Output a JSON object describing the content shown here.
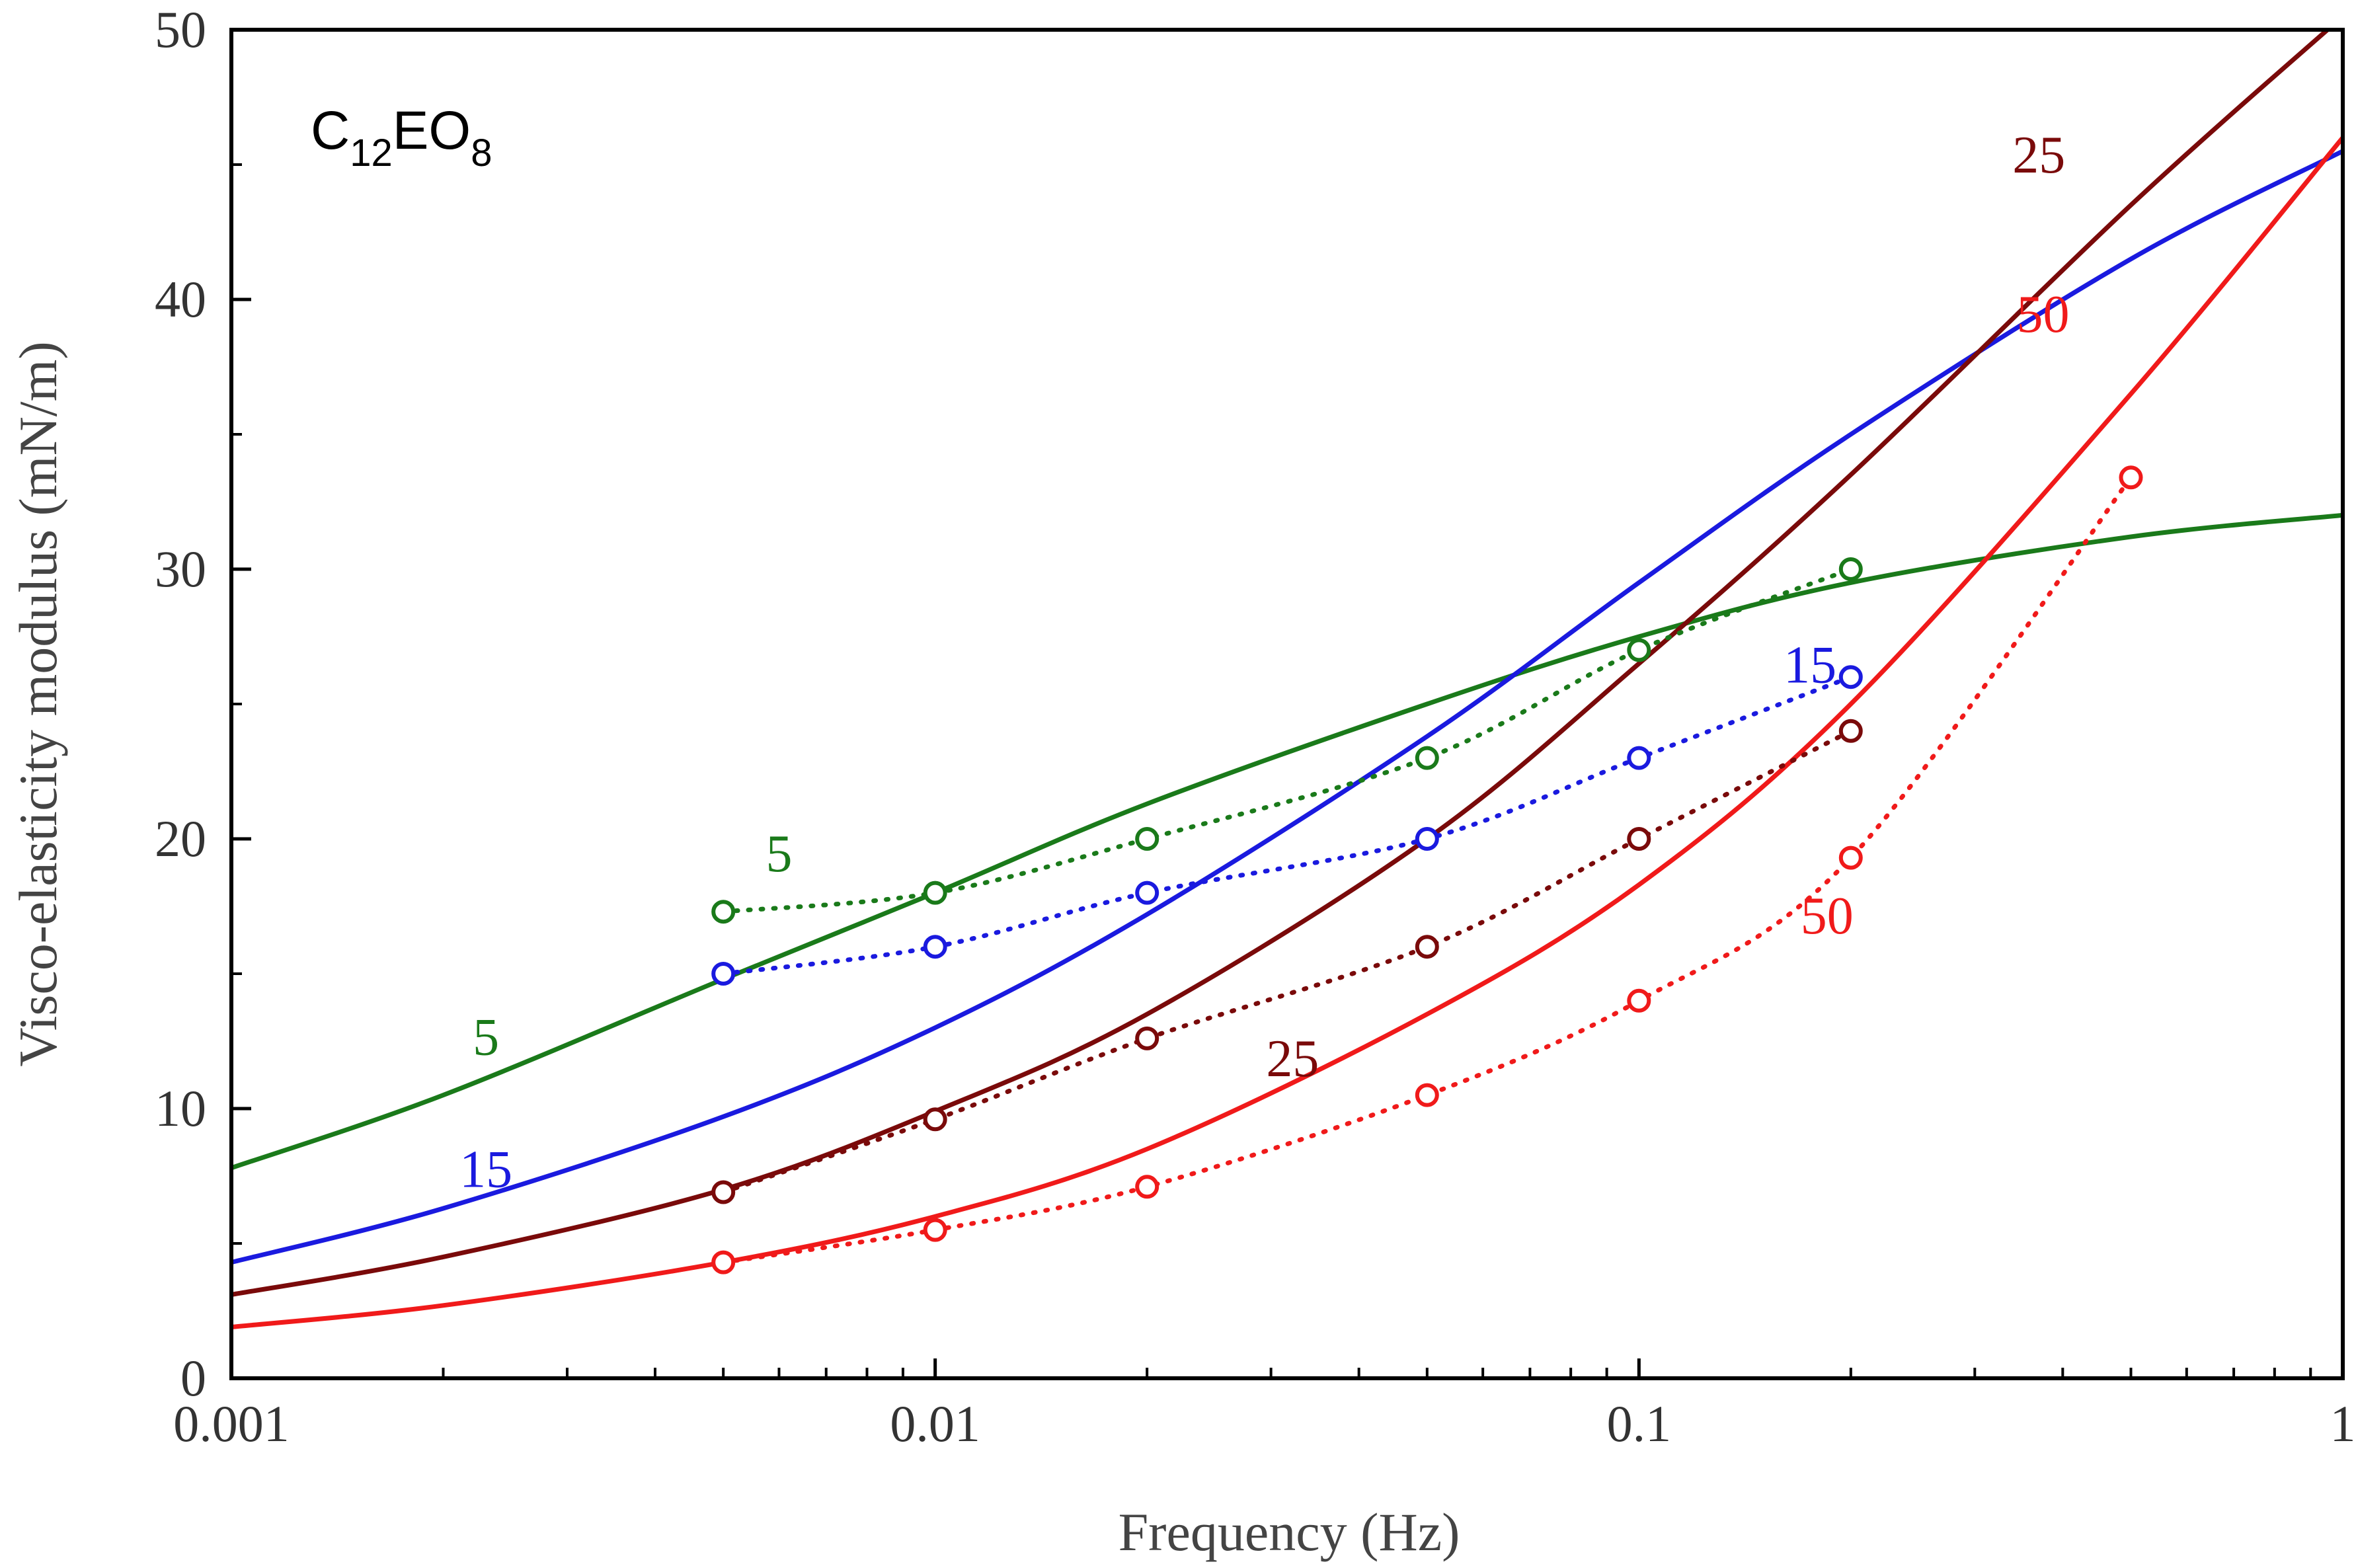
{
  "chart_data": {
    "type": "line",
    "title": "",
    "sample_label": {
      "main": "C",
      "sub1": "12",
      "mid": "EO",
      "sub2": "8"
    },
    "xlabel": "Frequency (Hz)",
    "ylabel": "Visco-elasticity modulus (mN/m)",
    "x_scale": "log",
    "xlim": [
      0.001,
      1
    ],
    "ylim": [
      0,
      50
    ],
    "x_ticks": [
      {
        "value": 0.001,
        "label": "0.001"
      },
      {
        "value": 0.01,
        "label": "0.01"
      },
      {
        "value": 0.1,
        "label": "0.1"
      },
      {
        "value": 1,
        "label": "1"
      }
    ],
    "y_ticks": [
      {
        "value": 0,
        "label": "0"
      },
      {
        "value": 10,
        "label": "10"
      },
      {
        "value": 20,
        "label": "20"
      },
      {
        "value": 30,
        "label": "30"
      },
      {
        "value": 40,
        "label": "40"
      },
      {
        "value": 50,
        "label": "50"
      }
    ],
    "grid": false,
    "model_curves": [
      {
        "name": "5",
        "color": "#1a7a1a",
        "x": [
          0.001,
          0.002,
          0.005,
          0.01,
          0.02,
          0.05,
          0.1,
          0.2,
          0.5,
          1
        ],
        "y": [
          7.8,
          10.5,
          14.8,
          18,
          21.3,
          25,
          27.5,
          29.5,
          31.2,
          32
        ]
      },
      {
        "name": "15",
        "color": "#1a1adf",
        "x": [
          0.001,
          0.002,
          0.005,
          0.01,
          0.02,
          0.05,
          0.1,
          0.2,
          0.5,
          1
        ],
        "y": [
          4.3,
          6.3,
          9.7,
          13,
          17.2,
          23.8,
          29.5,
          35,
          41.5,
          45.5
        ]
      },
      {
        "name": "25",
        "color": "#7a0a0a",
        "x": [
          0.001,
          0.002,
          0.005,
          0.01,
          0.02,
          0.05,
          0.1,
          0.2,
          0.5,
          1
        ],
        "y": [
          3.1,
          4.5,
          7,
          9.9,
          13.5,
          20,
          26.5,
          33.5,
          43.5,
          50.5
        ]
      },
      {
        "name": "50",
        "color": "#f01a1a",
        "x": [
          0.001,
          0.002,
          0.005,
          0.01,
          0.02,
          0.05,
          0.1,
          0.2,
          0.5,
          1
        ],
        "y": [
          1.9,
          2.7,
          4.3,
          6,
          8.5,
          13.5,
          18.3,
          25,
          36.5,
          46
        ]
      }
    ],
    "measured_series": [
      {
        "name": "5",
        "color": "#1a7a1a",
        "x": [
          0.005,
          0.01,
          0.02,
          0.05,
          0.1,
          0.2
        ],
        "y": [
          17.3,
          18,
          20,
          23,
          27,
          30
        ]
      },
      {
        "name": "15",
        "color": "#1a1adf",
        "x": [
          0.005,
          0.01,
          0.02,
          0.05,
          0.1,
          0.2
        ],
        "y": [
          15,
          16,
          18,
          20,
          23,
          26
        ]
      },
      {
        "name": "25",
        "color": "#7a0a0a",
        "x": [
          0.005,
          0.01,
          0.02,
          0.05,
          0.1,
          0.2
        ],
        "y": [
          6.9,
          9.6,
          12.6,
          16,
          20,
          24
        ]
      },
      {
        "name": "50",
        "color": "#f01a1a",
        "x": [
          0.005,
          0.01,
          0.02,
          0.05,
          0.1,
          0.2,
          0.5
        ],
        "y": [
          4.3,
          5.5,
          7.1,
          10.5,
          14,
          19.3,
          33.4
        ]
      }
    ],
    "annotations": [
      {
        "text": "5",
        "color": "#1a7a1a",
        "x": 0.0023,
        "y": 12.0
      },
      {
        "text": "15",
        "color": "#1a1adf",
        "x": 0.0023,
        "y": 7.1
      },
      {
        "text": "25",
        "color": "#7a0a0a",
        "x": 0.0322,
        "y": 11.2
      },
      {
        "text": "50",
        "color": "#f01a1a",
        "x": 0.375,
        "y": 38.8
      },
      {
        "text": "5",
        "color": "#1a7a1a",
        "x": 0.006,
        "y": 18.8
      },
      {
        "text": "15",
        "color": "#1a1adf",
        "x": 0.175,
        "y": 25.8
      },
      {
        "text": "25",
        "color": "#7a0a0a",
        "x": 0.37,
        "y": 44.7
      },
      {
        "text": "50",
        "color": "#f01a1a",
        "x": 0.185,
        "y": 16.5
      }
    ]
  }
}
